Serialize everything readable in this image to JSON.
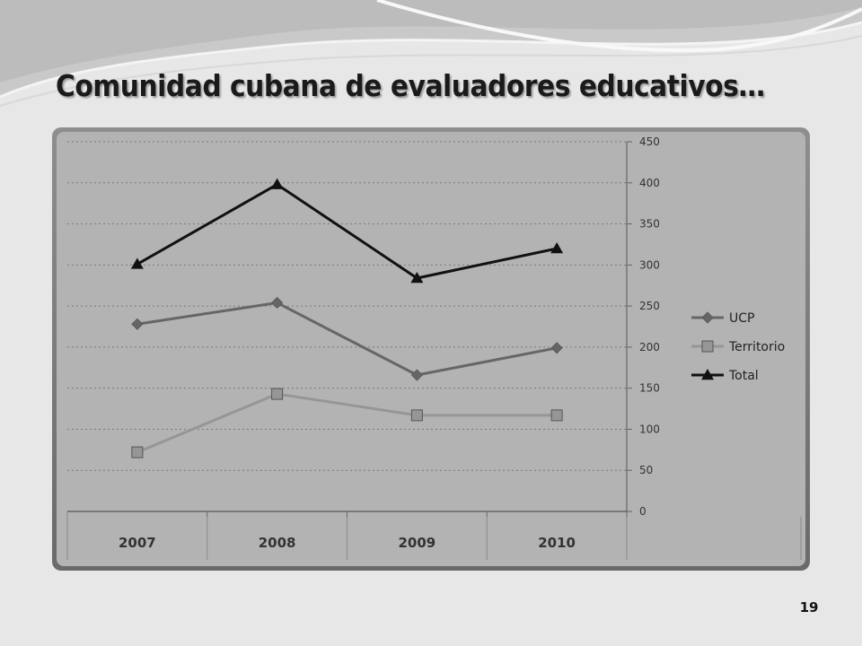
{
  "slide": {
    "title": "Comunidad cubana de evaluadores educativos…",
    "page_number": "19"
  },
  "colors": {
    "background": "#e7e7e7",
    "plot_area": "#b3b3b3",
    "ucp": "#666666",
    "territorio": "#969696",
    "total": "#111111"
  },
  "chart_data": {
    "type": "line",
    "categories": [
      "2007",
      "2008",
      "2009",
      "2010"
    ],
    "series": [
      {
        "name": "UCP",
        "marker": "diamond",
        "values": [
          228,
          254,
          166,
          199
        ]
      },
      {
        "name": "Territorio",
        "marker": "square",
        "values": [
          72,
          143,
          117,
          117
        ]
      },
      {
        "name": "Total",
        "marker": "triangle",
        "values": [
          301,
          398,
          284,
          320
        ]
      }
    ],
    "y_axis": {
      "position": "right",
      "min": 0,
      "max": 450,
      "step": 50,
      "ticks": [
        "0",
        "50",
        "100",
        "150",
        "200",
        "250",
        "300",
        "350",
        "400",
        "450"
      ]
    },
    "grid": "horizontal-dotted",
    "legend": "right"
  }
}
